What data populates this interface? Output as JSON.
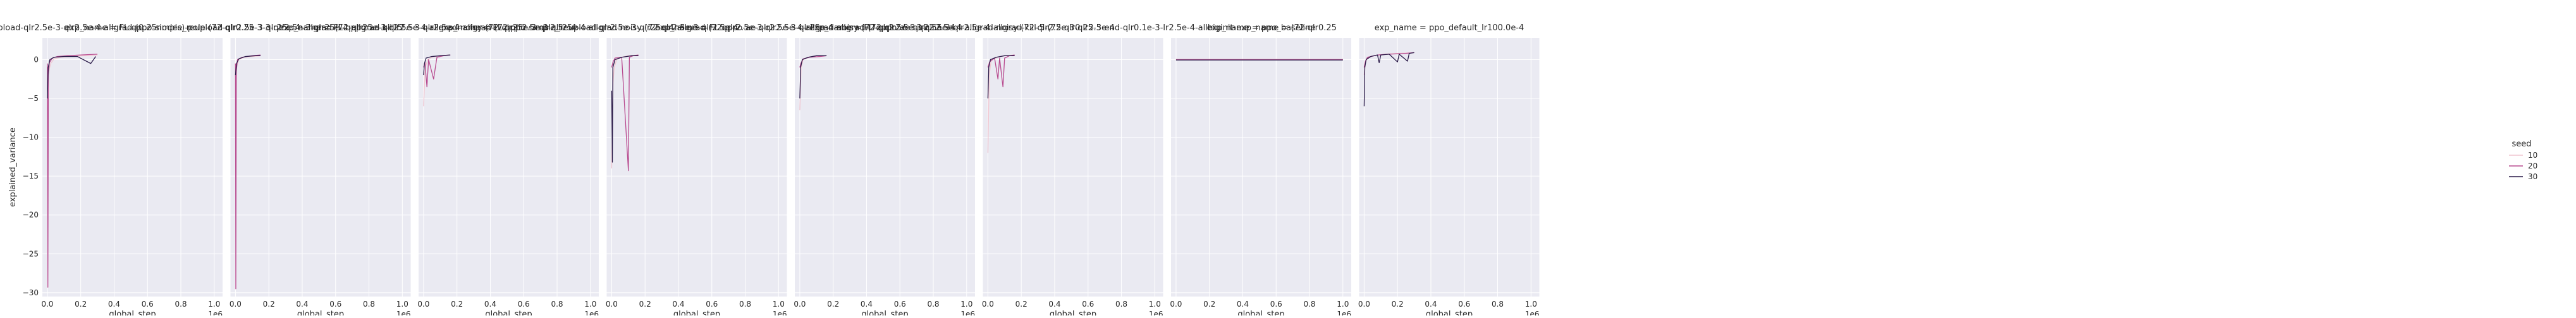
{
  "chart_data": {
    "type": "line",
    "ylabel": "explained_variance",
    "xlabel": "global_step",
    "xlim": [
      -30000,
      1050000
    ],
    "ylim": [
      -30.5,
      2.8
    ],
    "xticks": [
      0,
      200000,
      400000,
      600000,
      800000,
      1000000
    ],
    "xtick_labels": [
      "0.0",
      "0.2",
      "0.4",
      "0.6",
      "0.8",
      "1.0"
    ],
    "x_offset_label": "1e6",
    "yticks": [
      -30,
      -25,
      -20,
      -15,
      -10,
      -5,
      0
    ],
    "ytick_labels": [
      "−30",
      "−25",
      "−20",
      "−15",
      "−10",
      "−5",
      "0"
    ],
    "grid": true,
    "legend": {
      "title": "seed",
      "placement": "right",
      "entries": [
        {
          "label": "10",
          "color": "#f1c5d0"
        },
        {
          "label": "20",
          "color": "#b84a8f"
        },
        {
          "label": "30",
          "color": "#2a1a48"
        }
      ]
    },
    "panels": [
      {
        "title": "exp_name = FL-qppo-simple_reupload-qlr2.5e-3-qlr2.5e-4-allgrad-(0.25nodes)-pole-(72-qlr0.25-3-3-qlr2.5e-3-qlr25e-4-allgrad-kill-5",
        "series": [
          {
            "name": "10",
            "points": [
              [
                0,
                -3
              ],
              [
                8000,
                -1.5
              ],
              [
                20000,
                -0.5
              ],
              [
                40000,
                0.1
              ],
              [
                80000,
                0.3
              ],
              [
                150000,
                0.4
              ],
              [
                220000,
                0.5
              ],
              [
                300000,
                0.6
              ]
            ]
          },
          {
            "name": "20",
            "points": [
              [
                0,
                -0.5
              ],
              [
                3000,
                -29.3
              ],
              [
                6000,
                -2
              ],
              [
                12000,
                -0.4
              ],
              [
                30000,
                0.2
              ],
              [
                60000,
                0.4
              ],
              [
                120000,
                0.5
              ],
              [
                200000,
                0.6
              ],
              [
                300000,
                0.7
              ]
            ]
          },
          {
            "name": "30",
            "points": [
              [
                0,
                -5
              ],
              [
                5000,
                -1
              ],
              [
                15000,
                0
              ],
              [
                40000,
                0.3
              ],
              [
                100000,
                0.4
              ],
              [
                180000,
                0.4
              ],
              [
                260000,
                -0.5
              ],
              [
                290000,
                0.4
              ]
            ]
          }
        ]
      },
      {
        "title": "exp_name = FL-qppo-simple_reupload-qlr2.5e-3-qlr25e-4-allgrad-(72-qlr25e-3-qlr2.5e-4-allgrad-noisy-(72-qlr25e-3-qlr2.5e-4",
        "series": [
          {
            "name": "10",
            "points": [
              [
                0,
                -2
              ],
              [
                8000,
                -0.8
              ],
              [
                20000,
                0
              ],
              [
                50000,
                0.3
              ],
              [
                100000,
                0.4
              ],
              [
                150000,
                0.5
              ]
            ]
          },
          {
            "name": "20",
            "points": [
              [
                0,
                -0.5
              ],
              [
                2000,
                -29.5
              ],
              [
                5000,
                -1.5
              ],
              [
                12000,
                0
              ],
              [
                40000,
                0.3
              ],
              [
                100000,
                0.5
              ],
              [
                150000,
                0.6
              ]
            ]
          },
          {
            "name": "30",
            "points": [
              [
                0,
                -2
              ],
              [
                6000,
                -0.5
              ],
              [
                20000,
                0.1
              ],
              [
                60000,
                0.4
              ],
              [
                120000,
                0.5
              ],
              [
                150000,
                0.5
              ]
            ]
          }
        ]
      },
      {
        "title": "exp_name = FL-qppo-ae-qlr2.5e-3-qlr2.5e-4-allgrad-(72-qlr2.5e-3-qlr25e-4-allgrad-noisy-(72-qlr2.5e-3-qlr2.5e-4",
        "series": [
          {
            "name": "10",
            "points": [
              [
                0,
                -6
              ],
              [
                10000,
                -1
              ],
              [
                25000,
                0
              ],
              [
                50000,
                0.3
              ],
              [
                100000,
                0.5
              ],
              [
                160000,
                0.6
              ]
            ]
          },
          {
            "name": "20",
            "points": [
              [
                0,
                -1
              ],
              [
                8000,
                -0.3
              ],
              [
                20000,
                -3.5
              ],
              [
                30000,
                0
              ],
              [
                60000,
                -2.5
              ],
              [
                80000,
                0.3
              ],
              [
                120000,
                0.5
              ],
              [
                160000,
                0.6
              ]
            ]
          },
          {
            "name": "30",
            "points": [
              [
                0,
                -2
              ],
              [
                5000,
                -0.5
              ],
              [
                15000,
                0.2
              ],
              [
                50000,
                0.4
              ],
              [
                100000,
                0.5
              ],
              [
                160000,
                0.6
              ]
            ]
          }
        ]
      },
      {
        "title": "exp_name = FL-qppo-simple_reupload-qlr2.5e-3-qlr25e-4-allgrad-(72-qlr2.5e-3-qlr2.5e-4-allgrad-noisy-(72-qlr2.5e-3-qlr2.5e-4",
        "series": [
          {
            "name": "10",
            "points": [
              [
                0,
                -14
              ],
              [
                8000,
                -3
              ],
              [
                15000,
                -1
              ],
              [
                30000,
                0
              ],
              [
                60000,
                0.3
              ],
              [
                100000,
                0.5
              ],
              [
                160000,
                0.6
              ]
            ]
          },
          {
            "name": "20",
            "points": [
              [
                0,
                -1
              ],
              [
                8000,
                -0.3
              ],
              [
                20000,
                0.2
              ],
              [
                60000,
                0.3
              ],
              [
                100000,
                -14.3
              ],
              [
                106000,
                0.3
              ],
              [
                130000,
                0.5
              ],
              [
                160000,
                0.6
              ]
            ]
          },
          {
            "name": "30",
            "points": [
              [
                0,
                -4
              ],
              [
                4000,
                -13.2
              ],
              [
                7000,
                -1
              ],
              [
                20000,
                0
              ],
              [
                60000,
                0.3
              ],
              [
                120000,
                0.5
              ],
              [
                160000,
                0.5
              ]
            ]
          }
        ]
      },
      {
        "title": "exp_name = FL-qppo-ae-qlr2.5e-3-qlr25e-4-allgrad-(72-qlr2.5e-3-qlr2.5e-4-allgrad-noisy-(72-qlr2.5e-3-qlr2.5e-4",
        "series": [
          {
            "name": "10",
            "points": [
              [
                0,
                -6.5
              ],
              [
                8000,
                -1
              ],
              [
                20000,
                0
              ],
              [
                50000,
                0.3
              ],
              [
                100000,
                0.5
              ],
              [
                160000,
                0.5
              ]
            ]
          },
          {
            "name": "20",
            "points": [
              [
                0,
                -1
              ],
              [
                6000,
                -0.5
              ],
              [
                20000,
                0.1
              ],
              [
                60000,
                0.3
              ],
              [
                120000,
                0.4
              ],
              [
                160000,
                0.5
              ]
            ]
          },
          {
            "name": "30",
            "points": [
              [
                0,
                -5
              ],
              [
                5000,
                -1
              ],
              [
                15000,
                0
              ],
              [
                50000,
                0.3
              ],
              [
                100000,
                0.5
              ],
              [
                160000,
                0.5
              ]
            ]
          }
        ]
      },
      {
        "title": "exp_name = FL-qppo-ae-qlr2.5e-3-qlr2.5e-4-allgrad-kill-5-(72-qlr0.25-3-end-qlr0.1e-3-lr2.5e-4-allbiginit-exp_name = (72-qlr0.25",
        "series": [
          {
            "name": "10",
            "points": [
              [
                0,
                -12
              ],
              [
                8000,
                -2
              ],
              [
                20000,
                0
              ],
              [
                60000,
                0.3
              ],
              [
                100000,
                0.5
              ],
              [
                160000,
                0.6
              ]
            ]
          },
          {
            "name": "20",
            "points": [
              [
                0,
                -1
              ],
              [
                10000,
                -0.3
              ],
              [
                40000,
                0.2
              ],
              [
                60000,
                -2.5
              ],
              [
                70000,
                0.2
              ],
              [
                90000,
                -3.5
              ],
              [
                100000,
                0.2
              ],
              [
                130000,
                0.5
              ],
              [
                160000,
                0.6
              ]
            ]
          },
          {
            "name": "30",
            "points": [
              [
                0,
                -5
              ],
              [
                5000,
                -1
              ],
              [
                15000,
                0
              ],
              [
                50000,
                0.3
              ],
              [
                100000,
                0.5
              ],
              [
                160000,
                0.5
              ]
            ]
          }
        ]
      },
      {
        "title": "exp_name = ppo_baseline",
        "series": [
          {
            "name": "10",
            "points": [
              [
                0,
                0.05
              ],
              [
                500000,
                0.05
              ],
              [
                1000000,
                0.05
              ]
            ]
          },
          {
            "name": "20",
            "points": [
              [
                0,
                0.0
              ],
              [
                500000,
                0.0
              ],
              [
                1000000,
                0.0
              ]
            ]
          },
          {
            "name": "30",
            "points": [
              [
                0,
                -0.05
              ],
              [
                500000,
                -0.05
              ],
              [
                1000000,
                -0.05
              ]
            ]
          }
        ]
      },
      {
        "title": "exp_name = ppo_default_lr100.0e-4",
        "series": [
          {
            "name": "10",
            "points": [
              [
                0,
                -2
              ],
              [
                8000,
                -0.3
              ],
              [
                20000,
                0.2
              ],
              [
                60000,
                0.5
              ],
              [
                120000,
                0.7
              ],
              [
                200000,
                0.8
              ],
              [
                300000,
                0.9
              ]
            ]
          },
          {
            "name": "20",
            "points": [
              [
                0,
                -1
              ],
              [
                8000,
                -0.2
              ],
              [
                20000,
                0.3
              ],
              [
                80000,
                0.6
              ],
              [
                150000,
                0.7
              ],
              [
                250000,
                0.8
              ],
              [
                300000,
                0.9
              ]
            ]
          },
          {
            "name": "30",
            "points": [
              [
                0,
                -6
              ],
              [
                4000,
                -1
              ],
              [
                12000,
                0
              ],
              [
                40000,
                0.4
              ],
              [
                80000,
                0.6
              ],
              [
                90000,
                -0.4
              ],
              [
                100000,
                0.6
              ],
              [
                150000,
                0.7
              ],
              [
                200000,
                -0.3
              ],
              [
                210000,
                0.7
              ],
              [
                260000,
                -0.2
              ],
              [
                270000,
                0.8
              ],
              [
                300000,
                0.9
              ]
            ]
          }
        ]
      }
    ]
  }
}
